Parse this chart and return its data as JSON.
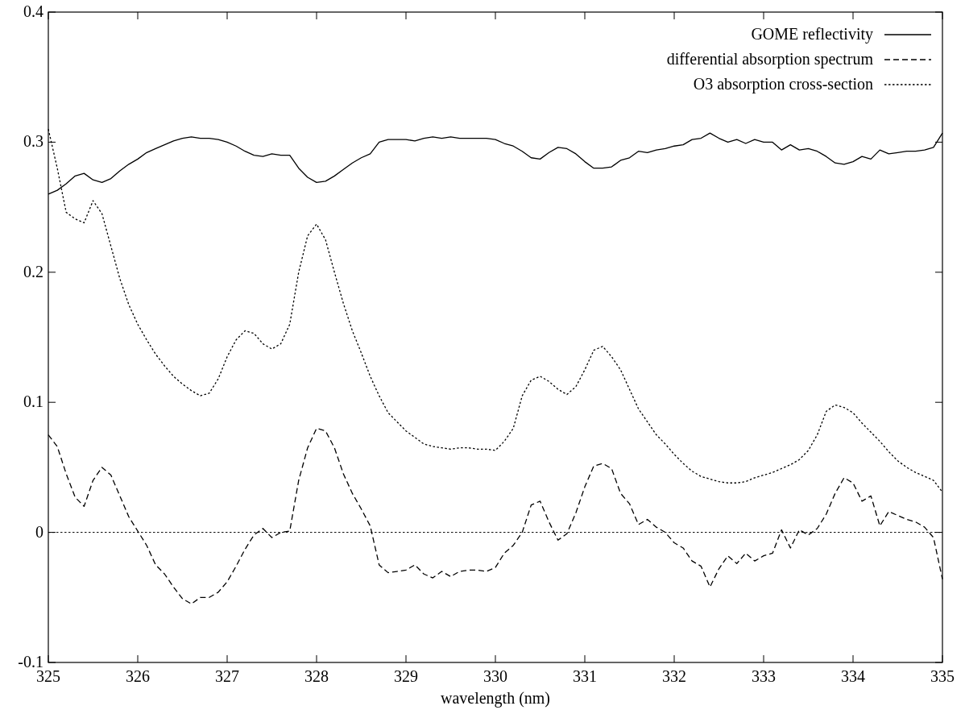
{
  "chart_data": {
    "type": "line",
    "xlabel": "wavelength (nm)",
    "xlim": [
      325,
      335
    ],
    "xticks": [
      325,
      326,
      327,
      328,
      329,
      330,
      331,
      332,
      333,
      334,
      335
    ],
    "ylim": [
      -0.1,
      0.4
    ],
    "yticks": [
      -0.1,
      0,
      0.1,
      0.2,
      0.3,
      0.4
    ],
    "grid": false,
    "legend": "top right",
    "ref_lines": [
      {
        "axis": "y",
        "value": 0,
        "color": "#000000",
        "line_style": "dotted"
      }
    ],
    "x": [
      325,
      325.1,
      325.2,
      325.3,
      325.4,
      325.5,
      325.6,
      325.7,
      325.8,
      325.9,
      326,
      326.1,
      326.2,
      326.3,
      326.4,
      326.5,
      326.6,
      326.7,
      326.8,
      326.9,
      327,
      327.1,
      327.2,
      327.3,
      327.4,
      327.5,
      327.6,
      327.7,
      327.8,
      327.9,
      328,
      328.1,
      328.2,
      328.3,
      328.4,
      328.5,
      328.6,
      328.7,
      328.8,
      328.9,
      329,
      329.1,
      329.2,
      329.3,
      329.4,
      329.5,
      329.6,
      329.7,
      329.8,
      329.9,
      330,
      330.1,
      330.2,
      330.3,
      330.4,
      330.5,
      330.6,
      330.7,
      330.8,
      330.9,
      331,
      331.1,
      331.2,
      331.3,
      331.4,
      331.5,
      331.6,
      331.7,
      331.8,
      331.9,
      332,
      332.1,
      332.2,
      332.3,
      332.4,
      332.5,
      332.6,
      332.7,
      332.8,
      332.9,
      333,
      333.1,
      333.2,
      333.3,
      333.4,
      333.5,
      333.6,
      333.7,
      333.8,
      333.9,
      334,
      334.1,
      334.2,
      334.3,
      334.4,
      334.5,
      334.6,
      334.7,
      334.8,
      334.9,
      335
    ],
    "series": [
      {
        "name": "GOME reflectivity",
        "color": "#000000",
        "line_style": "solid",
        "values": [
          0.26,
          0.263,
          0.268,
          0.274,
          0.276,
          0.271,
          0.269,
          0.272,
          0.278,
          0.283,
          0.287,
          0.292,
          0.295,
          0.298,
          0.301,
          0.303,
          0.304,
          0.303,
          0.303,
          0.302,
          0.3,
          0.297,
          0.293,
          0.29,
          0.289,
          0.291,
          0.29,
          0.29,
          0.28,
          0.273,
          0.269,
          0.27,
          0.274,
          0.279,
          0.284,
          0.288,
          0.291,
          0.3,
          0.302,
          0.302,
          0.302,
          0.301,
          0.303,
          0.304,
          0.303,
          0.304,
          0.303,
          0.303,
          0.303,
          0.303,
          0.302,
          0.299,
          0.297,
          0.293,
          0.288,
          0.287,
          0.292,
          0.296,
          0.295,
          0.291,
          0.285,
          0.28,
          0.28,
          0.281,
          0.286,
          0.288,
          0.293,
          0.292,
          0.294,
          0.295,
          0.297,
          0.298,
          0.302,
          0.303,
          0.307,
          0.303,
          0.3,
          0.302,
          0.299,
          0.302,
          0.3,
          0.3,
          0.294,
          0.298,
          0.294,
          0.295,
          0.293,
          0.289,
          0.284,
          0.283,
          0.285,
          0.289,
          0.287,
          0.294,
          0.291,
          0.292,
          0.293,
          0.293,
          0.294,
          0.296,
          0.307
        ]
      },
      {
        "name": "differential absorption spectrum",
        "color": "#000000",
        "line_style": "dashed",
        "values": [
          0.075,
          0.066,
          0.045,
          0.027,
          0.02,
          0.04,
          0.05,
          0.044,
          0.028,
          0.012,
          0.001,
          -0.01,
          -0.025,
          -0.032,
          -0.042,
          -0.051,
          -0.055,
          -0.05,
          -0.05,
          -0.046,
          -0.038,
          -0.026,
          -0.013,
          -0.002,
          0.003,
          -0.004,
          0,
          0.001,
          0.04,
          0.065,
          0.08,
          0.078,
          0.065,
          0.045,
          0.03,
          0.018,
          0.005,
          -0.025,
          -0.031,
          -0.03,
          -0.029,
          -0.025,
          -0.032,
          -0.035,
          -0.03,
          -0.034,
          -0.03,
          -0.029,
          -0.029,
          -0.03,
          -0.027,
          -0.016,
          -0.01,
          0,
          0.021,
          0.024,
          0.008,
          -0.006,
          -0.001,
          0.015,
          0.035,
          0.051,
          0.053,
          0.049,
          0.03,
          0.022,
          0.006,
          0.01,
          0.004,
          0,
          -0.008,
          -0.012,
          -0.022,
          -0.026,
          -0.042,
          -0.028,
          -0.018,
          -0.024,
          -0.016,
          -0.022,
          -0.018,
          -0.016,
          0.002,
          -0.012,
          0.002,
          -0.002,
          0.003,
          0.014,
          0.03,
          0.042,
          0.038,
          0.024,
          0.028,
          0.005,
          0.016,
          0.013,
          0.01,
          0.008,
          0.004,
          -0.004,
          -0.036
        ]
      },
      {
        "name": "O3 absorption cross-section",
        "color": "#000000",
        "line_style": "dotted",
        "values": [
          0.31,
          0.28,
          0.246,
          0.241,
          0.238,
          0.255,
          0.245,
          0.22,
          0.195,
          0.175,
          0.16,
          0.148,
          0.137,
          0.128,
          0.12,
          0.114,
          0.109,
          0.105,
          0.107,
          0.118,
          0.135,
          0.148,
          0.155,
          0.153,
          0.145,
          0.141,
          0.145,
          0.16,
          0.2,
          0.228,
          0.237,
          0.225,
          0.2,
          0.176,
          0.155,
          0.138,
          0.12,
          0.105,
          0.092,
          0.085,
          0.078,
          0.073,
          0.068,
          0.066,
          0.065,
          0.064,
          0.065,
          0.065,
          0.064,
          0.064,
          0.063,
          0.07,
          0.08,
          0.105,
          0.117,
          0.12,
          0.116,
          0.11,
          0.106,
          0.112,
          0.125,
          0.14,
          0.143,
          0.135,
          0.125,
          0.11,
          0.095,
          0.085,
          0.075,
          0.068,
          0.06,
          0.053,
          0.047,
          0.043,
          0.041,
          0.039,
          0.038,
          0.038,
          0.039,
          0.042,
          0.044,
          0.046,
          0.049,
          0.052,
          0.056,
          0.063,
          0.075,
          0.093,
          0.098,
          0.096,
          0.092,
          0.084,
          0.077,
          0.07,
          0.062,
          0.055,
          0.05,
          0.046,
          0.043,
          0.04,
          0.031
        ]
      }
    ]
  }
}
